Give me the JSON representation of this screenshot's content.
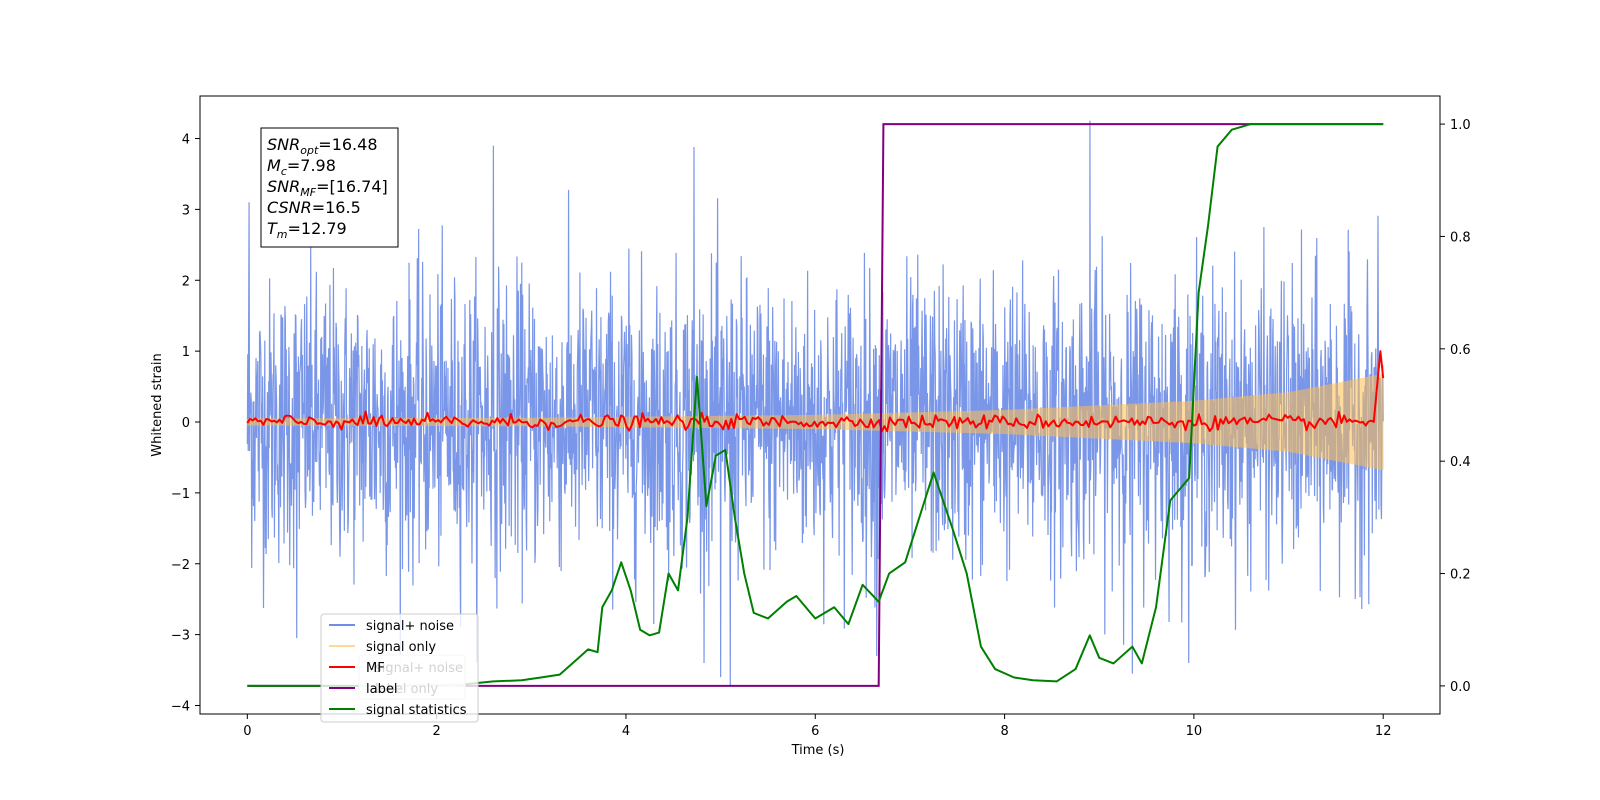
{
  "chart_data": {
    "type": "line",
    "xlabel": "Time (s)",
    "ylabel": "Whitened strain",
    "xlim": [
      -0.5,
      12.6
    ],
    "ylim_left": [
      -4.12,
      4.6
    ],
    "ylim_right": [
      -0.05,
      1.05
    ],
    "x_ticks": [
      0,
      2,
      4,
      6,
      8,
      10,
      12
    ],
    "x_tick_labels": [
      "0",
      "2",
      "4",
      "6",
      "8",
      "10",
      "12"
    ],
    "y_ticks_left": [
      -4,
      -3,
      -2,
      -1,
      0,
      1,
      2,
      3,
      4
    ],
    "y_tick_labels_left": [
      "−4",
      "−3",
      "−2",
      "−1",
      "0",
      "1",
      "2",
      "3",
      "4"
    ],
    "y_ticks_right": [
      0.0,
      0.2,
      0.4,
      0.6,
      0.8,
      1.0
    ],
    "y_tick_labels_right": [
      "0.0",
      "0.2",
      "0.4",
      "0.6",
      "0.8",
      "1.0"
    ],
    "grid": false,
    "legend_placement": "lower-left",
    "legend": [
      {
        "label": "signal+ noise",
        "color": "#6f8de6"
      },
      {
        "label": "signal only",
        "color": "#ffc04d"
      },
      {
        "label": "MF",
        "color": "#ff0000"
      },
      {
        "label": "label",
        "color": "#800080"
      },
      {
        "label": "signal statistics",
        "color": "#008000"
      }
    ],
    "legend_ghost": [
      "signal+ noise",
      "label only"
    ],
    "annotation": {
      "lines": [
        {
          "base": "SNR",
          "sub": "opt",
          "value": "=16.48"
        },
        {
          "base": "M",
          "sub": "c",
          "value": "=7.98"
        },
        {
          "base": "SNR",
          "sub": "MF",
          "value": "=[16.74]"
        },
        {
          "base": "CSNR",
          "sub": "",
          "value": "=16.5"
        },
        {
          "base": "T",
          "sub": "m",
          "value": "=12.79"
        }
      ]
    },
    "series": [
      {
        "name": "signal+ noise",
        "axis": "left",
        "color": "#6f8de6",
        "x_range": [
          0,
          12
        ],
        "amplitude_sigma": 1.0,
        "notable_spikes": [
          {
            "x": 0.02,
            "y": 3.1
          },
          {
            "x": 2.6,
            "y": 3.9
          },
          {
            "x": 4.72,
            "y": 3.88
          },
          {
            "x": 5.1,
            "y": -3.72
          },
          {
            "x": 5.0,
            "y": -3.6
          },
          {
            "x": 8.9,
            "y": 4.25
          },
          {
            "x": 6.65,
            "y": -3.3
          },
          {
            "x": 9.35,
            "y": -3.55
          },
          {
            "x": 0.52,
            "y": -3.05
          }
        ]
      },
      {
        "name": "signal only",
        "axis": "left",
        "color": "#ffc04d",
        "x_range": [
          0,
          12
        ],
        "envelope": [
          {
            "x": 0,
            "y": 0.05
          },
          {
            "x": 3,
            "y": 0.06
          },
          {
            "x": 6,
            "y": 0.1
          },
          {
            "x": 8,
            "y": 0.17
          },
          {
            "x": 10,
            "y": 0.3
          },
          {
            "x": 11,
            "y": 0.42
          },
          {
            "x": 12,
            "y": 0.68
          }
        ]
      },
      {
        "name": "MF",
        "axis": "left",
        "color": "#ff0000",
        "x_range": [
          0,
          12
        ],
        "amplitude": 0.05,
        "end_points": [
          {
            "x": 11.9,
            "y": 0.0
          },
          {
            "x": 11.97,
            "y": 1.0
          },
          {
            "x": 12.0,
            "y": 0.62
          }
        ]
      },
      {
        "name": "label",
        "axis": "right",
        "color": "#800080",
        "points": [
          {
            "x": 0,
            "y": 0.0
          },
          {
            "x": 6.67,
            "y": 0.0
          },
          {
            "x": 6.72,
            "y": 1.0
          },
          {
            "x": 12,
            "y": 1.0
          }
        ]
      },
      {
        "name": "signal statistics",
        "axis": "right",
        "color": "#008000",
        "points": [
          {
            "x": 0.0,
            "y": 0.0
          },
          {
            "x": 0.5,
            "y": 0.0
          },
          {
            "x": 1.0,
            "y": 0.0
          },
          {
            "x": 1.5,
            "y": 0.0
          },
          {
            "x": 2.0,
            "y": 0.002
          },
          {
            "x": 2.3,
            "y": 0.003
          },
          {
            "x": 2.6,
            "y": 0.008
          },
          {
            "x": 2.9,
            "y": 0.01
          },
          {
            "x": 3.1,
            "y": 0.015
          },
          {
            "x": 3.3,
            "y": 0.02
          },
          {
            "x": 3.5,
            "y": 0.05
          },
          {
            "x": 3.6,
            "y": 0.065
          },
          {
            "x": 3.7,
            "y": 0.06
          },
          {
            "x": 3.75,
            "y": 0.14
          },
          {
            "x": 3.85,
            "y": 0.17
          },
          {
            "x": 3.95,
            "y": 0.22
          },
          {
            "x": 4.05,
            "y": 0.17
          },
          {
            "x": 4.15,
            "y": 0.1
          },
          {
            "x": 4.25,
            "y": 0.09
          },
          {
            "x": 4.35,
            "y": 0.095
          },
          {
            "x": 4.45,
            "y": 0.2
          },
          {
            "x": 4.55,
            "y": 0.17
          },
          {
            "x": 4.65,
            "y": 0.3
          },
          {
            "x": 4.75,
            "y": 0.55
          },
          {
            "x": 4.85,
            "y": 0.32
          },
          {
            "x": 4.95,
            "y": 0.41
          },
          {
            "x": 5.05,
            "y": 0.42
          },
          {
            "x": 5.15,
            "y": 0.3
          },
          {
            "x": 5.25,
            "y": 0.2
          },
          {
            "x": 5.35,
            "y": 0.13
          },
          {
            "x": 5.5,
            "y": 0.12
          },
          {
            "x": 5.7,
            "y": 0.15
          },
          {
            "x": 5.8,
            "y": 0.16
          },
          {
            "x": 6.0,
            "y": 0.12
          },
          {
            "x": 6.2,
            "y": 0.14
          },
          {
            "x": 6.35,
            "y": 0.11
          },
          {
            "x": 6.5,
            "y": 0.18
          },
          {
            "x": 6.67,
            "y": 0.15
          },
          {
            "x": 6.78,
            "y": 0.2
          },
          {
            "x": 6.95,
            "y": 0.22
          },
          {
            "x": 7.1,
            "y": 0.3
          },
          {
            "x": 7.25,
            "y": 0.38
          },
          {
            "x": 7.35,
            "y": 0.33
          },
          {
            "x": 7.45,
            "y": 0.28
          },
          {
            "x": 7.6,
            "y": 0.2
          },
          {
            "x": 7.75,
            "y": 0.07
          },
          {
            "x": 7.9,
            "y": 0.03
          },
          {
            "x": 8.1,
            "y": 0.015
          },
          {
            "x": 8.3,
            "y": 0.01
          },
          {
            "x": 8.55,
            "y": 0.008
          },
          {
            "x": 8.75,
            "y": 0.03
          },
          {
            "x": 8.9,
            "y": 0.09
          },
          {
            "x": 9.0,
            "y": 0.05
          },
          {
            "x": 9.15,
            "y": 0.04
          },
          {
            "x": 9.35,
            "y": 0.07
          },
          {
            "x": 9.45,
            "y": 0.04
          },
          {
            "x": 9.6,
            "y": 0.14
          },
          {
            "x": 9.75,
            "y": 0.33
          },
          {
            "x": 9.85,
            "y": 0.35
          },
          {
            "x": 9.95,
            "y": 0.37
          },
          {
            "x": 10.05,
            "y": 0.7
          },
          {
            "x": 10.15,
            "y": 0.82
          },
          {
            "x": 10.25,
            "y": 0.96
          },
          {
            "x": 10.4,
            "y": 0.99
          },
          {
            "x": 10.6,
            "y": 1.0
          },
          {
            "x": 11.0,
            "y": 1.0
          },
          {
            "x": 11.5,
            "y": 1.0
          },
          {
            "x": 12.0,
            "y": 1.0
          }
        ]
      }
    ]
  }
}
